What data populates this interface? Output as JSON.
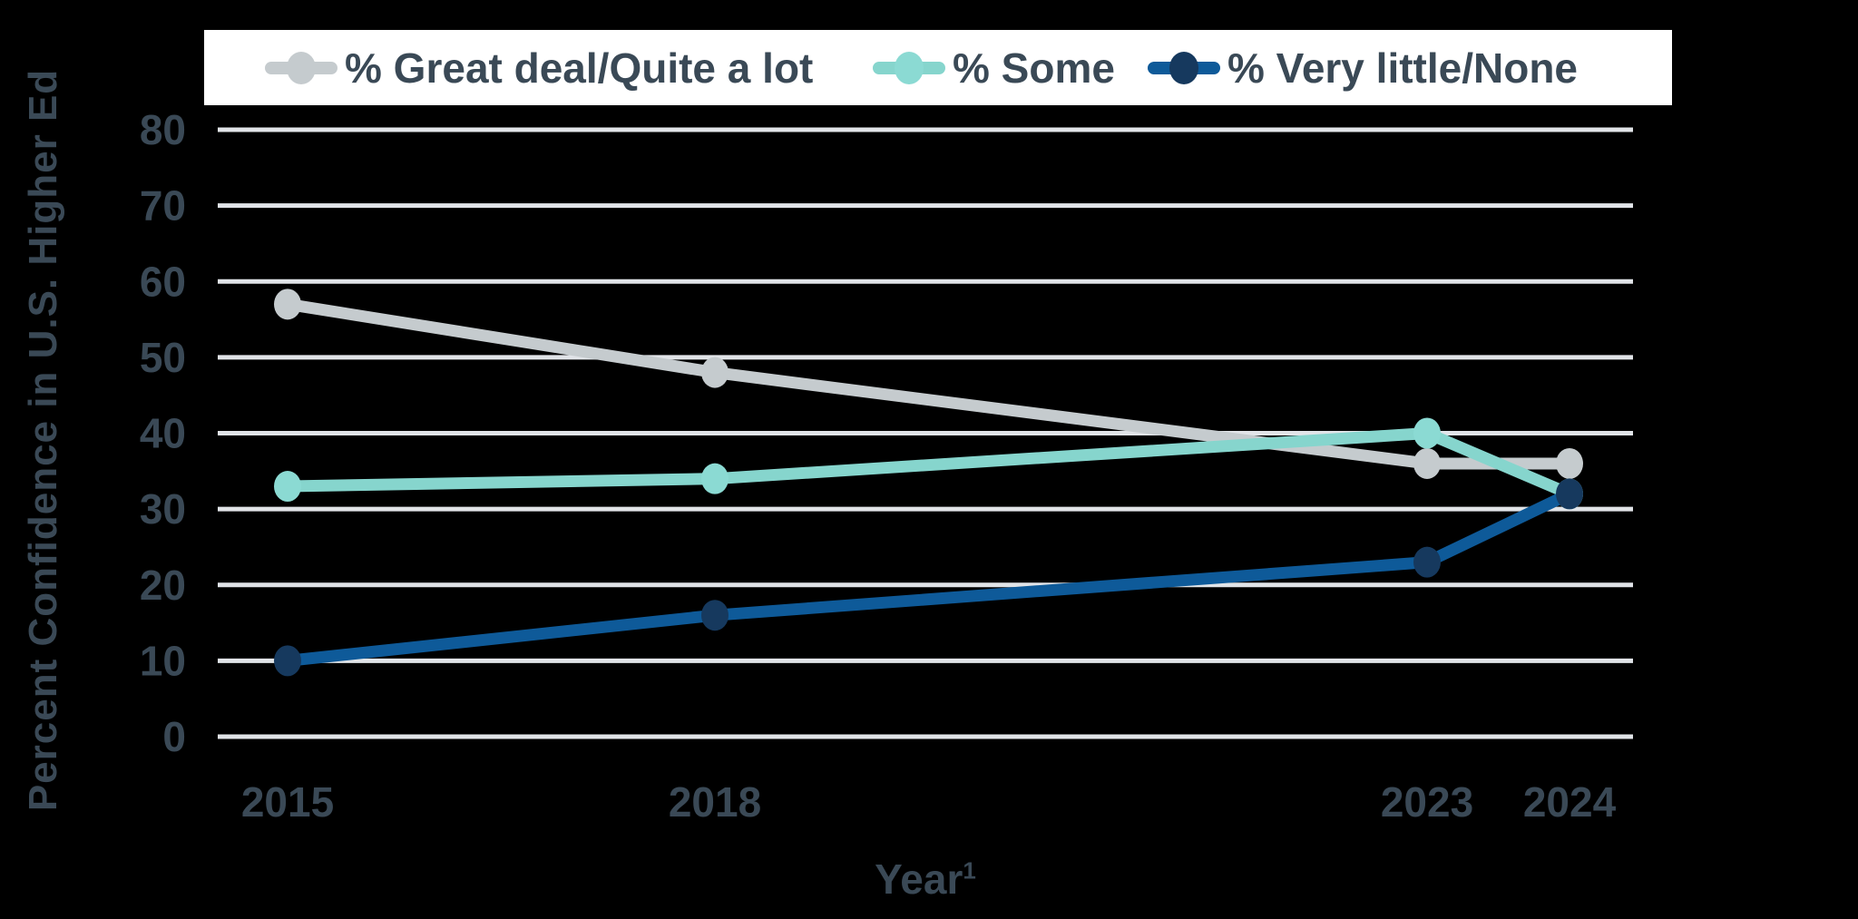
{
  "chart_data": {
    "type": "line",
    "title": "",
    "x": [
      2015,
      2018,
      2023,
      2024
    ],
    "x_tick_labels": [
      "2015",
      "2018",
      "2023",
      "2024"
    ],
    "xlabel": "Year",
    "xlabel_superscript": "1",
    "ylabel": "Percent Confidence in U.S. Higher Ed",
    "yticks": [
      0,
      10,
      20,
      30,
      40,
      50,
      60,
      70,
      80
    ],
    "ylim": [
      0,
      80
    ],
    "xlim": [
      2014.5,
      2024.45
    ],
    "grid": "horizontal",
    "legend_position": "top",
    "series": [
      {
        "name": "% Great deal/Quite a lot",
        "values": [
          57,
          48,
          36,
          36
        ],
        "line_color": "#c5cbce",
        "marker_color": "#c5cbce"
      },
      {
        "name": "% Some",
        "values": [
          33,
          34,
          40,
          32
        ],
        "line_color": "#86d5cd",
        "marker_color": "#8bdad3"
      },
      {
        "name": "% Very little/None",
        "values": [
          10,
          16,
          23,
          32
        ],
        "line_color": "#0e5a99",
        "marker_color": "#16395e"
      }
    ],
    "colors": {
      "background": "#000000",
      "gridline": "#e1e4e8",
      "text": "#3a4956",
      "legend_background": "#ffffff"
    }
  }
}
